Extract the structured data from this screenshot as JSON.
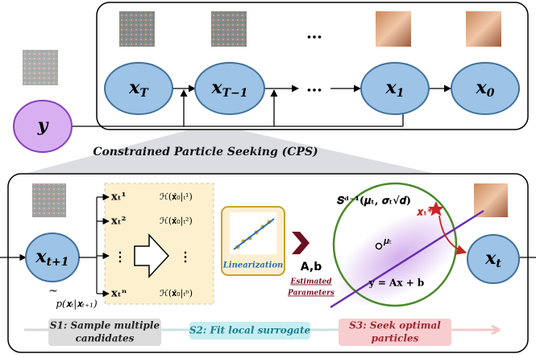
{
  "top": {
    "input": "y",
    "nodes": [
      {
        "base": "x",
        "sub": "T"
      },
      {
        "base": "x",
        "sub": "T−1"
      },
      {
        "base": "x",
        "sub": "1"
      },
      {
        "base": "x",
        "sub": "0"
      }
    ],
    "ellipsis_upper": "…",
    "ellipsis_lower": "…"
  },
  "cps_title": "Constrained Particle Seeking (CPS)",
  "cps": {
    "input": {
      "base": "x",
      "sub": "t+1"
    },
    "transition_tilde": "~",
    "transition": "p(𝐱ₜ|𝐱ₜ₊₁)",
    "particles": [
      "𝐱ₜ¹",
      "𝐱ₜ²",
      "⋮",
      "𝐱ₜⁿ"
    ],
    "scores": [
      "ℋ(𝐱̂₀|ₜ¹)",
      "ℋ(𝐱̂₀|ₜ²)",
      "⋮",
      "ℋ(𝐱̂₀|ₜⁿ)"
    ],
    "linearization": "Linearization",
    "params": "A,b",
    "params_caption": [
      "Estimated",
      "Parameters"
    ],
    "sphere": "𝑺ᵈ⁻¹(𝝁ₜ, 𝝈ₜ√𝒅)",
    "mean": "𝝁ₜ",
    "optimum": "𝒙ₜ*",
    "constraint": "𝐲 = 𝐀𝐱 + 𝐛",
    "output": {
      "base": "x",
      "sub": "t"
    },
    "steps": [
      [
        "S1: Sample multiple",
        "candidates"
      ],
      [
        "S2: Fit local surrogate"
      ],
      [
        "S3: Seek optimal",
        "particles"
      ]
    ]
  }
}
